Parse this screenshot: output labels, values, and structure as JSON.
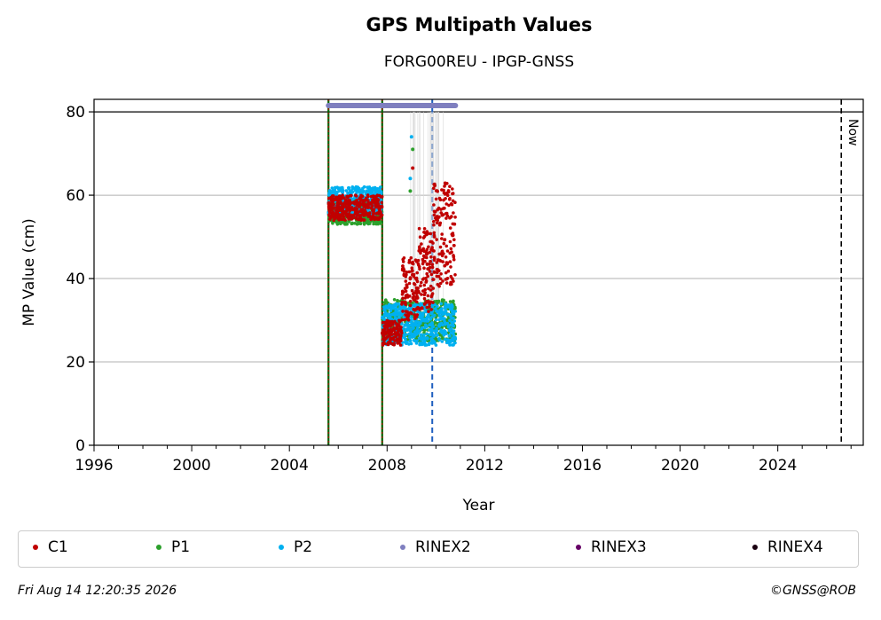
{
  "title": "GPS Multipath Values",
  "subtitle": "FORG00REU - IPGP-GNSS",
  "footer": {
    "timestamp": "Fri Aug 14 12:20:35 2026",
    "credit": "©GNSS@ROB"
  },
  "now_label": "Now",
  "chart_data": {
    "type": "scatter",
    "title": "GPS Multipath Values",
    "subtitle": "FORG00REU - IPGP-GNSS",
    "xlabel": "Year",
    "ylabel": "MP Value (cm)",
    "xlim": [
      1996,
      2027.5
    ],
    "ylim": [
      0,
      83
    ],
    "xticks": [
      1996,
      2000,
      2004,
      2008,
      2012,
      2016,
      2020,
      2024
    ],
    "yticks": [
      0,
      20,
      40,
      60,
      80
    ],
    "grid": "horizontal",
    "legend_position": "bottom",
    "now_year": 2026.6,
    "threshold_y": 80,
    "events": [
      {
        "x": 2005.6,
        "color": "#006400",
        "style": "solid",
        "overlay": "#cc0000"
      },
      {
        "x": 2007.8,
        "color": "#006400",
        "style": "solid",
        "overlay": "#cc0000"
      },
      {
        "x": 2009.85,
        "color": "#1f5fbf",
        "style": "dashed"
      }
    ],
    "rinex2_coverage": [
      2005.6,
      2010.8
    ],
    "rinex2_y": 81.5,
    "series": [
      {
        "name": "C1",
        "color": "#c00000",
        "segments": [
          {
            "x": [
              2005.6,
              2007.8
            ],
            "y_range": [
              54,
              60
            ]
          },
          {
            "x": [
              2007.8,
              2008.6
            ],
            "y_range": [
              24,
              30
            ]
          },
          {
            "x": [
              2008.6,
              2009.3
            ],
            "y_range": [
              30,
              45
            ]
          },
          {
            "x": [
              2009.3,
              2009.9
            ],
            "y_range": [
              32,
              52
            ]
          },
          {
            "x": [
              2009.9,
              2010.8
            ],
            "y_range": [
              38,
              63
            ]
          }
        ]
      },
      {
        "name": "P1",
        "color": "#2ca02c",
        "segments": [
          {
            "x": [
              2005.6,
              2007.8
            ],
            "y_range": [
              53,
              59
            ]
          },
          {
            "x": [
              2007.8,
              2010.8
            ],
            "y_range": [
              25,
              35
            ]
          }
        ]
      },
      {
        "name": "P2",
        "color": "#00b0f0",
        "segments": [
          {
            "x": [
              2005.6,
              2007.8
            ],
            "y_range": [
              55,
              62
            ]
          },
          {
            "x": [
              2007.8,
              2010.8
            ],
            "y_range": [
              24,
              34
            ]
          }
        ]
      }
    ],
    "outliers": [
      {
        "series": "P2",
        "x": 2009.0,
        "y": 74
      },
      {
        "series": "P1",
        "x": 2009.05,
        "y": 71
      },
      {
        "series": "C1",
        "x": 2009.05,
        "y": 66.5
      },
      {
        "series": "P1",
        "x": 2008.95,
        "y": 61
      },
      {
        "series": "P2",
        "x": 2008.95,
        "y": 64
      }
    ],
    "legend": [
      {
        "name": "C1",
        "color": "#c00000"
      },
      {
        "name": "P1",
        "color": "#2ca02c"
      },
      {
        "name": "P2",
        "color": "#00b0f0"
      },
      {
        "name": "RINEX2",
        "color": "#7f7fbf"
      },
      {
        "name": "RINEX3",
        "color": "#660066"
      },
      {
        "name": "RINEX4",
        "color": "#1a0010"
      }
    ]
  }
}
